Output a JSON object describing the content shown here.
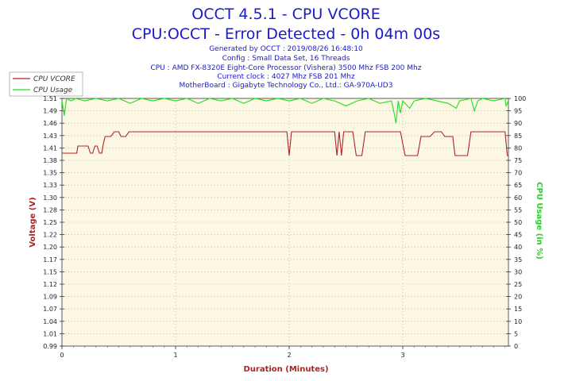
{
  "header": {
    "title": "OCCT 4.5.1 - CPU VCORE",
    "subtitle": "CPU:OCCT - Error Detected - 0h 04m 00s",
    "info_lines": [
      "Generated by OCCT : 2019/08/26 16:48:10",
      "Config : Small Data Set, 16 Threads",
      "CPU : AMD FX-8320E Eight-Core Processor (Vishera) 3500 Mhz FSB 200 Mhz",
      "Current clock : 4027 Mhz FSB 201 Mhz",
      "MotherBoard : Gigabyte Technology Co., Ltd.: GA-970A-UD3"
    ]
  },
  "colors": {
    "vcore": "#b22222",
    "usage": "#22dd22",
    "plot_bg": "#fdf8e4",
    "grid": "#9a9a9a",
    "title": "#1a1acd"
  },
  "chart_data": {
    "type": "line",
    "xlabel": "Duration (Minutes)",
    "ylabel": "Voltage (V)",
    "y2label": "CPU Usage (in %)",
    "xlim": [
      0,
      3.93
    ],
    "ylim": [
      0.99,
      1.51
    ],
    "y2lim": [
      0,
      100
    ],
    "x_ticks": [
      0,
      1,
      2,
      3
    ],
    "y_ticks": [
      "0.99",
      "1.01",
      "1.04",
      "1.07",
      "1.09",
      "1.12",
      "1.15",
      "1.17",
      "1.20",
      "1.22",
      "1.25",
      "1.28",
      "1.30",
      "1.33",
      "1.35",
      "1.38",
      "1.41",
      "1.43",
      "1.46",
      "1.49",
      "1.51"
    ],
    "y2_ticks": [
      0,
      5,
      10,
      15,
      20,
      25,
      30,
      35,
      40,
      45,
      50,
      55,
      60,
      65,
      70,
      75,
      80,
      85,
      90,
      95,
      100
    ],
    "grid": true,
    "legend_position": "top-left",
    "series": [
      {
        "name": "CPU VCORE",
        "axis": "left",
        "points": [
          [
            0.0,
            1.395
          ],
          [
            0.13,
            1.395
          ],
          [
            0.14,
            1.41
          ],
          [
            0.23,
            1.41
          ],
          [
            0.25,
            1.395
          ],
          [
            0.27,
            1.395
          ],
          [
            0.29,
            1.41
          ],
          [
            0.31,
            1.41
          ],
          [
            0.33,
            1.395
          ],
          [
            0.35,
            1.395
          ],
          [
            0.36,
            1.41
          ],
          [
            0.38,
            1.43
          ],
          [
            0.43,
            1.43
          ],
          [
            0.46,
            1.44
          ],
          [
            0.5,
            1.44
          ],
          [
            0.52,
            1.43
          ],
          [
            0.56,
            1.43
          ],
          [
            0.59,
            1.44
          ],
          [
            0.62,
            1.44
          ],
          [
            0.65,
            1.44
          ],
          [
            1.98,
            1.44
          ],
          [
            2.0,
            1.39
          ],
          [
            2.02,
            1.44
          ],
          [
            2.4,
            1.44
          ],
          [
            2.42,
            1.39
          ],
          [
            2.44,
            1.44
          ],
          [
            2.46,
            1.39
          ],
          [
            2.48,
            1.44
          ],
          [
            2.56,
            1.44
          ],
          [
            2.59,
            1.39
          ],
          [
            2.64,
            1.39
          ],
          [
            2.67,
            1.44
          ],
          [
            2.98,
            1.44
          ],
          [
            3.02,
            1.39
          ],
          [
            3.13,
            1.39
          ],
          [
            3.16,
            1.43
          ],
          [
            3.24,
            1.43
          ],
          [
            3.28,
            1.44
          ],
          [
            3.34,
            1.44
          ],
          [
            3.37,
            1.43
          ],
          [
            3.44,
            1.43
          ],
          [
            3.46,
            1.39
          ],
          [
            3.57,
            1.39
          ],
          [
            3.6,
            1.44
          ],
          [
            3.9,
            1.44
          ],
          [
            3.92,
            1.39
          ],
          [
            3.93,
            1.39
          ]
        ]
      },
      {
        "name": "CPU Usage",
        "axis": "right",
        "points": [
          [
            0.0,
            99
          ],
          [
            0.02,
            93
          ],
          [
            0.04,
            100
          ],
          [
            0.08,
            99
          ],
          [
            0.12,
            100
          ],
          [
            0.2,
            99
          ],
          [
            0.3,
            100
          ],
          [
            0.4,
            99
          ],
          [
            0.5,
            100
          ],
          [
            0.6,
            98
          ],
          [
            0.7,
            100
          ],
          [
            0.8,
            99
          ],
          [
            0.9,
            100
          ],
          [
            1.0,
            99
          ],
          [
            1.1,
            100
          ],
          [
            1.2,
            98
          ],
          [
            1.3,
            100
          ],
          [
            1.4,
            99
          ],
          [
            1.5,
            100
          ],
          [
            1.6,
            98
          ],
          [
            1.7,
            100
          ],
          [
            1.8,
            99
          ],
          [
            1.9,
            100
          ],
          [
            2.0,
            99
          ],
          [
            2.1,
            100
          ],
          [
            2.2,
            98
          ],
          [
            2.3,
            100
          ],
          [
            2.4,
            99
          ],
          [
            2.5,
            97
          ],
          [
            2.6,
            99
          ],
          [
            2.7,
            100
          ],
          [
            2.8,
            98
          ],
          [
            2.9,
            99
          ],
          [
            2.92,
            95
          ],
          [
            2.94,
            90
          ],
          [
            2.96,
            99
          ],
          [
            2.98,
            94
          ],
          [
            3.0,
            99
          ],
          [
            3.06,
            96
          ],
          [
            3.1,
            99
          ],
          [
            3.2,
            100
          ],
          [
            3.3,
            99
          ],
          [
            3.4,
            98
          ],
          [
            3.47,
            96
          ],
          [
            3.5,
            99
          ],
          [
            3.6,
            100
          ],
          [
            3.63,
            95
          ],
          [
            3.66,
            99
          ],
          [
            3.7,
            100
          ],
          [
            3.8,
            99
          ],
          [
            3.9,
            100
          ],
          [
            3.91,
            97
          ],
          [
            3.93,
            99
          ]
        ]
      }
    ]
  }
}
